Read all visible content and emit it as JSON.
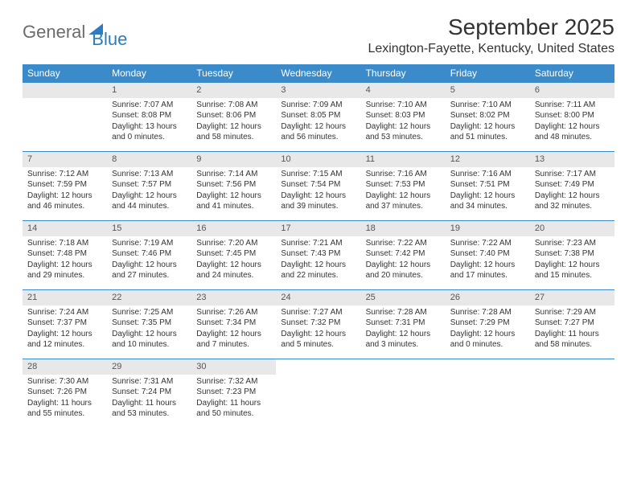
{
  "brand": {
    "part1": "General",
    "part2": "Blue"
  },
  "title": "September 2025",
  "location": "Lexington-Fayette, Kentucky, United States",
  "colors": {
    "header_bg": "#3b8bca",
    "header_fg": "#ffffff",
    "daynum_bg": "#e8e8e8",
    "rule": "#3b8bca",
    "brand_gray": "#6b6b6b",
    "brand_blue": "#2e7cc0"
  },
  "dow": [
    "Sunday",
    "Monday",
    "Tuesday",
    "Wednesday",
    "Thursday",
    "Friday",
    "Saturday"
  ],
  "weeks": [
    [
      null,
      {
        "n": "1",
        "sr": "Sunrise: 7:07 AM",
        "ss": "Sunset: 8:08 PM",
        "dl": "Daylight: 13 hours and 0 minutes."
      },
      {
        "n": "2",
        "sr": "Sunrise: 7:08 AM",
        "ss": "Sunset: 8:06 PM",
        "dl": "Daylight: 12 hours and 58 minutes."
      },
      {
        "n": "3",
        "sr": "Sunrise: 7:09 AM",
        "ss": "Sunset: 8:05 PM",
        "dl": "Daylight: 12 hours and 56 minutes."
      },
      {
        "n": "4",
        "sr": "Sunrise: 7:10 AM",
        "ss": "Sunset: 8:03 PM",
        "dl": "Daylight: 12 hours and 53 minutes."
      },
      {
        "n": "5",
        "sr": "Sunrise: 7:10 AM",
        "ss": "Sunset: 8:02 PM",
        "dl": "Daylight: 12 hours and 51 minutes."
      },
      {
        "n": "6",
        "sr": "Sunrise: 7:11 AM",
        "ss": "Sunset: 8:00 PM",
        "dl": "Daylight: 12 hours and 48 minutes."
      }
    ],
    [
      {
        "n": "7",
        "sr": "Sunrise: 7:12 AM",
        "ss": "Sunset: 7:59 PM",
        "dl": "Daylight: 12 hours and 46 minutes."
      },
      {
        "n": "8",
        "sr": "Sunrise: 7:13 AM",
        "ss": "Sunset: 7:57 PM",
        "dl": "Daylight: 12 hours and 44 minutes."
      },
      {
        "n": "9",
        "sr": "Sunrise: 7:14 AM",
        "ss": "Sunset: 7:56 PM",
        "dl": "Daylight: 12 hours and 41 minutes."
      },
      {
        "n": "10",
        "sr": "Sunrise: 7:15 AM",
        "ss": "Sunset: 7:54 PM",
        "dl": "Daylight: 12 hours and 39 minutes."
      },
      {
        "n": "11",
        "sr": "Sunrise: 7:16 AM",
        "ss": "Sunset: 7:53 PM",
        "dl": "Daylight: 12 hours and 37 minutes."
      },
      {
        "n": "12",
        "sr": "Sunrise: 7:16 AM",
        "ss": "Sunset: 7:51 PM",
        "dl": "Daylight: 12 hours and 34 minutes."
      },
      {
        "n": "13",
        "sr": "Sunrise: 7:17 AM",
        "ss": "Sunset: 7:49 PM",
        "dl": "Daylight: 12 hours and 32 minutes."
      }
    ],
    [
      {
        "n": "14",
        "sr": "Sunrise: 7:18 AM",
        "ss": "Sunset: 7:48 PM",
        "dl": "Daylight: 12 hours and 29 minutes."
      },
      {
        "n": "15",
        "sr": "Sunrise: 7:19 AM",
        "ss": "Sunset: 7:46 PM",
        "dl": "Daylight: 12 hours and 27 minutes."
      },
      {
        "n": "16",
        "sr": "Sunrise: 7:20 AM",
        "ss": "Sunset: 7:45 PM",
        "dl": "Daylight: 12 hours and 24 minutes."
      },
      {
        "n": "17",
        "sr": "Sunrise: 7:21 AM",
        "ss": "Sunset: 7:43 PM",
        "dl": "Daylight: 12 hours and 22 minutes."
      },
      {
        "n": "18",
        "sr": "Sunrise: 7:22 AM",
        "ss": "Sunset: 7:42 PM",
        "dl": "Daylight: 12 hours and 20 minutes."
      },
      {
        "n": "19",
        "sr": "Sunrise: 7:22 AM",
        "ss": "Sunset: 7:40 PM",
        "dl": "Daylight: 12 hours and 17 minutes."
      },
      {
        "n": "20",
        "sr": "Sunrise: 7:23 AM",
        "ss": "Sunset: 7:38 PM",
        "dl": "Daylight: 12 hours and 15 minutes."
      }
    ],
    [
      {
        "n": "21",
        "sr": "Sunrise: 7:24 AM",
        "ss": "Sunset: 7:37 PM",
        "dl": "Daylight: 12 hours and 12 minutes."
      },
      {
        "n": "22",
        "sr": "Sunrise: 7:25 AM",
        "ss": "Sunset: 7:35 PM",
        "dl": "Daylight: 12 hours and 10 minutes."
      },
      {
        "n": "23",
        "sr": "Sunrise: 7:26 AM",
        "ss": "Sunset: 7:34 PM",
        "dl": "Daylight: 12 hours and 7 minutes."
      },
      {
        "n": "24",
        "sr": "Sunrise: 7:27 AM",
        "ss": "Sunset: 7:32 PM",
        "dl": "Daylight: 12 hours and 5 minutes."
      },
      {
        "n": "25",
        "sr": "Sunrise: 7:28 AM",
        "ss": "Sunset: 7:31 PM",
        "dl": "Daylight: 12 hours and 3 minutes."
      },
      {
        "n": "26",
        "sr": "Sunrise: 7:28 AM",
        "ss": "Sunset: 7:29 PM",
        "dl": "Daylight: 12 hours and 0 minutes."
      },
      {
        "n": "27",
        "sr": "Sunrise: 7:29 AM",
        "ss": "Sunset: 7:27 PM",
        "dl": "Daylight: 11 hours and 58 minutes."
      }
    ],
    [
      {
        "n": "28",
        "sr": "Sunrise: 7:30 AM",
        "ss": "Sunset: 7:26 PM",
        "dl": "Daylight: 11 hours and 55 minutes."
      },
      {
        "n": "29",
        "sr": "Sunrise: 7:31 AM",
        "ss": "Sunset: 7:24 PM",
        "dl": "Daylight: 11 hours and 53 minutes."
      },
      {
        "n": "30",
        "sr": "Sunrise: 7:32 AM",
        "ss": "Sunset: 7:23 PM",
        "dl": "Daylight: 11 hours and 50 minutes."
      },
      null,
      null,
      null,
      null
    ]
  ]
}
